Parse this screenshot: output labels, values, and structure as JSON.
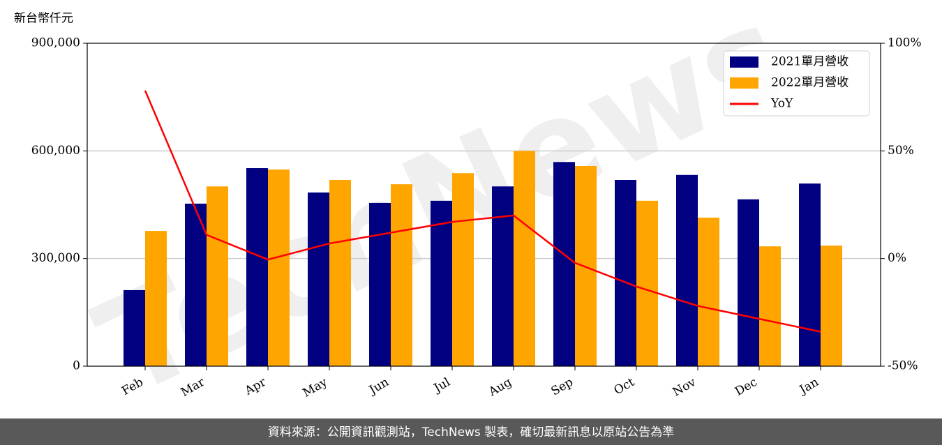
{
  "chart_data": {
    "type": "bar",
    "y_label": "新台幣仟元",
    "categories": [
      "Feb",
      "Mar",
      "Apr",
      "May",
      "Jun",
      "Jul",
      "Aug",
      "Sep",
      "Oct",
      "Nov",
      "Dec",
      "Jan"
    ],
    "series": [
      {
        "name": "2021單月營收",
        "color": "#000080",
        "values": [
          212000,
          453000,
          552000,
          484000,
          455000,
          461000,
          501000,
          569000,
          519000,
          533000,
          465000,
          509000
        ]
      },
      {
        "name": "2022單月營收",
        "color": "#ffa500",
        "values": [
          377000,
          501000,
          548000,
          519000,
          507000,
          538000,
          600000,
          558000,
          461000,
          414000,
          334000,
          336000
        ]
      },
      {
        "name": "YoY",
        "type": "line",
        "axis": "y2",
        "color": "#ff0000",
        "values": [
          78,
          11,
          -0.5,
          7,
          12,
          17,
          20,
          -2,
          -13,
          -22,
          -28,
          -34
        ]
      }
    ],
    "ylim": [
      0,
      900000
    ],
    "yticks": [
      0,
      {
        "value": 300000,
        "label": "300,000"
      },
      {
        "value": 600000,
        "label": "600,000"
      },
      {
        "value": 900000,
        "label": "900,000"
      }
    ],
    "y2lim": [
      -50,
      100
    ],
    "y2ticks": [
      {
        "value": -50,
        "label": "-50%"
      },
      {
        "value": 0,
        "label": "0%"
      },
      {
        "value": 50,
        "label": "50%"
      },
      {
        "value": 100,
        "label": "100%"
      }
    ],
    "grid": true,
    "legend": "upper right",
    "watermark": "TechNews",
    "footer": "資料來源：公開資訊觀測站，TechNews 製表，確切最新訊息以原站公告為準"
  }
}
